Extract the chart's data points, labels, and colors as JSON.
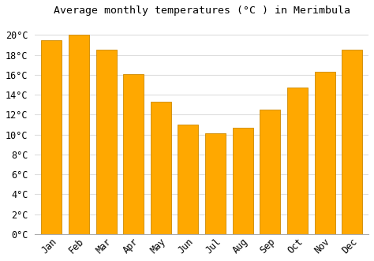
{
  "title": "Average monthly temperatures (°C ) in Merimbula",
  "months": [
    "Jan",
    "Feb",
    "Mar",
    "Apr",
    "May",
    "Jun",
    "Jul",
    "Aug",
    "Sep",
    "Oct",
    "Nov",
    "Dec"
  ],
  "values": [
    19.5,
    20.0,
    18.5,
    16.1,
    13.3,
    11.0,
    10.1,
    10.7,
    12.5,
    14.7,
    16.3,
    18.5
  ],
  "bar_color": "#FFA800",
  "bar_edge_color": "#CC8800",
  "background_color": "#FFFFFF",
  "grid_color": "#DDDDDD",
  "ytick_labels": [
    "0°C",
    "2°C",
    "4°C",
    "6°C",
    "8°C",
    "10°C",
    "12°C",
    "14°C",
    "16°C",
    "18°C",
    "20°C"
  ],
  "ytick_values": [
    0,
    2,
    4,
    6,
    8,
    10,
    12,
    14,
    16,
    18,
    20
  ],
  "ylim": [
    0,
    21.5
  ],
  "title_fontsize": 9.5,
  "tick_fontsize": 8.5,
  "font_family": "monospace",
  "bar_width": 0.75
}
